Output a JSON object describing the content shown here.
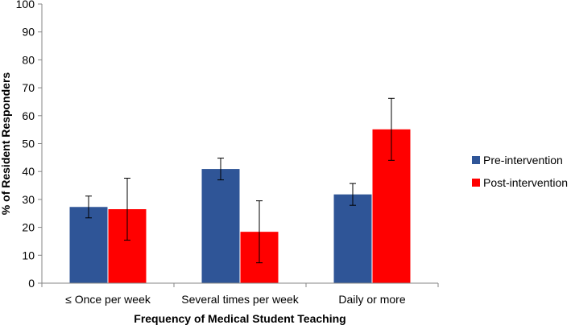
{
  "chart_data": {
    "type": "bar",
    "title": "",
    "xlabel": "Frequency of Medical Student Teaching",
    "ylabel": "% of Resident Responders",
    "ylim": [
      0,
      100
    ],
    "yticks": [
      0,
      10,
      20,
      30,
      40,
      50,
      60,
      70,
      80,
      90,
      100
    ],
    "ytick_labels": [
      "0",
      "10",
      "20",
      "30",
      "40",
      "50",
      "60",
      "70",
      "80",
      "90",
      "100"
    ],
    "categories": [
      "≤ Once per week",
      "Several times per week",
      "Daily or more"
    ],
    "series": [
      {
        "name": "Pre-intervention",
        "color": "#2f5597",
        "values": [
          27.3,
          40.9,
          31.8
        ],
        "error_low": [
          23.4,
          37.0,
          27.9
        ],
        "error_high": [
          31.2,
          44.8,
          35.7
        ]
      },
      {
        "name": "Post-intervention",
        "color": "#ff0000",
        "values": [
          26.5,
          18.4,
          55.1
        ],
        "error_low": [
          15.4,
          7.3,
          44.0
        ],
        "error_high": [
          37.6,
          29.5,
          66.2
        ]
      }
    ],
    "legend_position": "right",
    "grid": false
  }
}
